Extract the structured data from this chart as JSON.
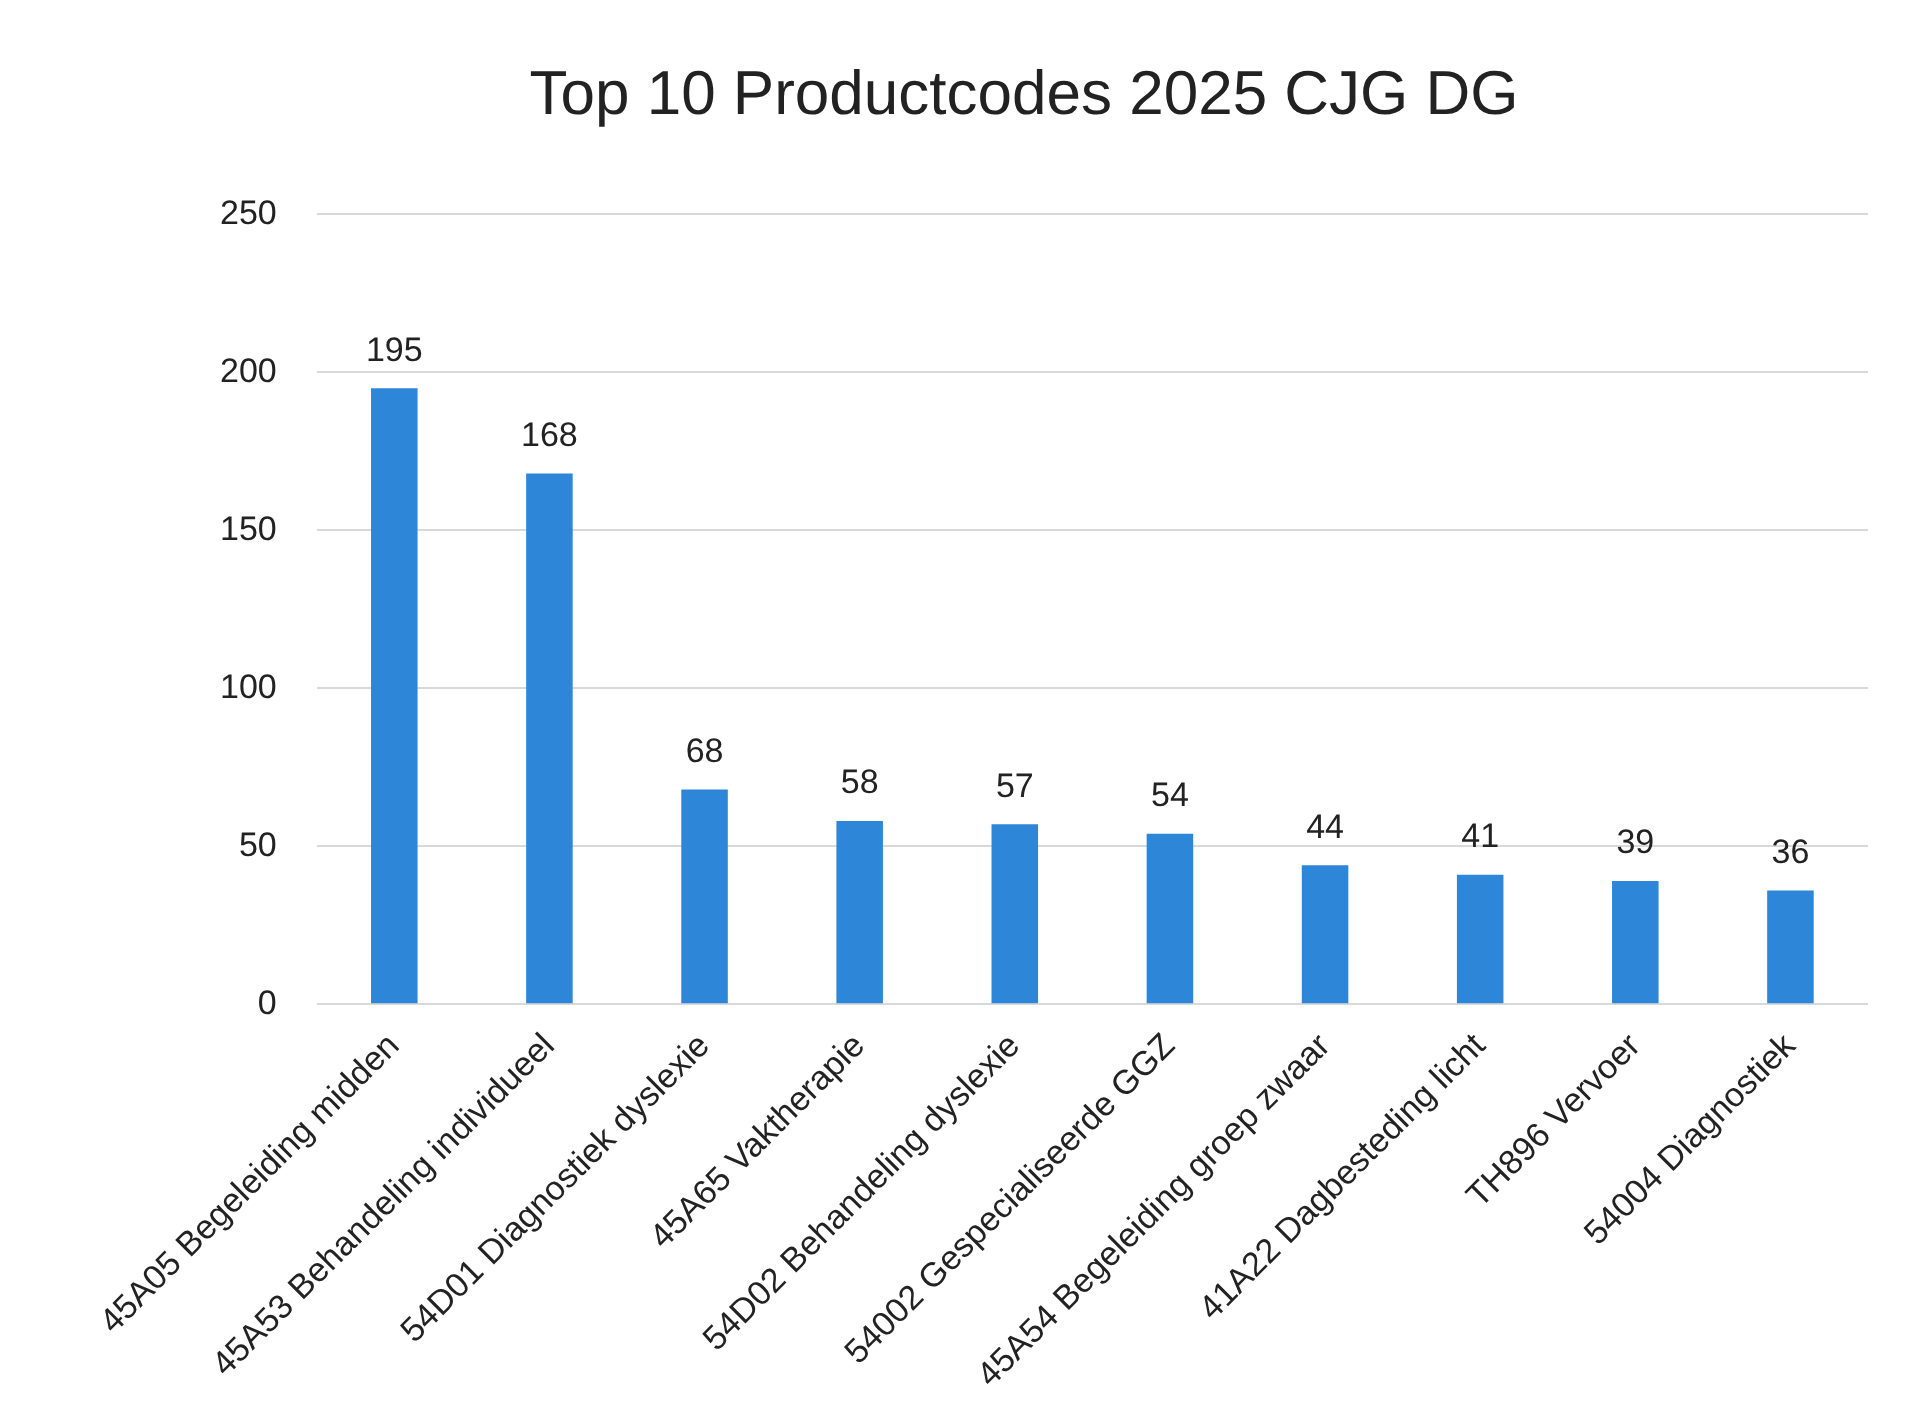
{
  "chart_data": {
    "type": "bar",
    "title": "Top 10 Productcodes 2025 CJG DG",
    "categories": [
      "45A05 Begeleiding midden",
      "45A53 Behandeling individueel",
      "54D01 Diagnostiek dyslexie",
      "45A65 Vaktherapie",
      "54D02 Behandeling dyslexie",
      "54002 Gespecialiseerde GGZ",
      "45A54 Begeleiding groep zwaar",
      "41A22 Dagbesteding licht",
      "TH896 Vervoer",
      "54004 Diagnostiek"
    ],
    "values": [
      195,
      168,
      68,
      58,
      57,
      54,
      44,
      41,
      39,
      36
    ],
    "color": "#2e86d9",
    "ylim": [
      0,
      250
    ],
    "yticks": [
      0,
      50,
      100,
      150,
      200,
      250
    ],
    "grid": "y",
    "data_labels": true
  }
}
